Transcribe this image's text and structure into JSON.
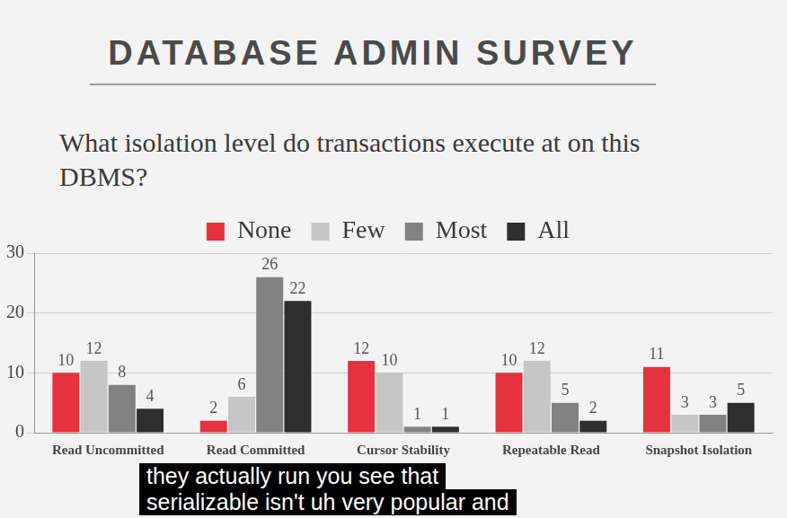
{
  "chart_data": {
    "type": "bar",
    "title": "DATABASE ADMIN SURVEY",
    "subtitle": "What isolation level do transactions execute at on this DBMS?",
    "annotations": [
      "they actually run you see that",
      "serializable isn't uh very popular and"
    ],
    "categories": [
      "Read Uncommitted",
      "Read Committed",
      "Cursor Stability",
      "Repeatable Read",
      "Snapshot Isolation"
    ],
    "series": [
      {
        "name": "None",
        "color": "#e5323e",
        "values": [
          10,
          2,
          12,
          10,
          11
        ]
      },
      {
        "name": "Few",
        "color": "#c6c6c6",
        "values": [
          12,
          6,
          10,
          12,
          3
        ]
      },
      {
        "name": "Most",
        "color": "#828282",
        "values": [
          8,
          26,
          1,
          5,
          3
        ]
      },
      {
        "name": "All",
        "color": "#2e2e2e",
        "values": [
          4,
          22,
          1,
          2,
          5
        ]
      }
    ],
    "ylim": [
      0,
      30
    ],
    "yticks": [
      0,
      10,
      20,
      30
    ],
    "grid": true,
    "legend": "top",
    "data_labels": true
  }
}
